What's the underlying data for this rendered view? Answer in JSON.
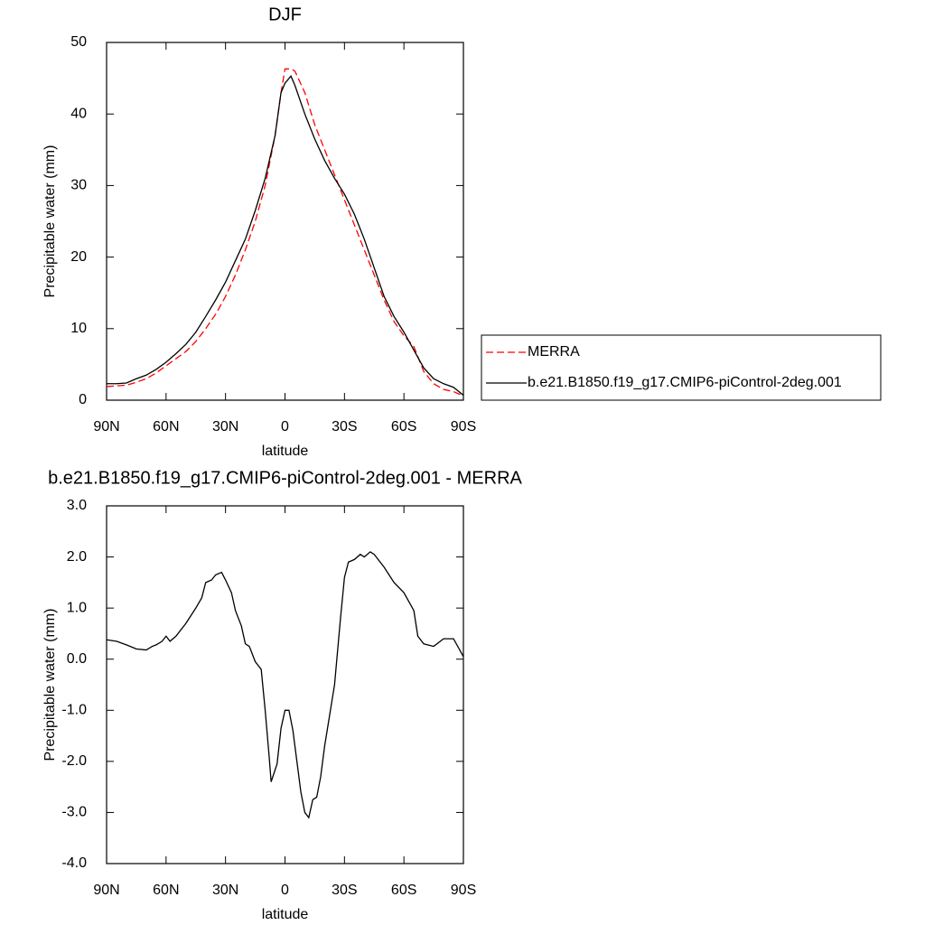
{
  "chart_data": [
    {
      "type": "line",
      "title": "DJF",
      "x_label": "latitude",
      "y_label": "Precipitable water (mm)",
      "x": [
        90,
        85,
        80,
        75,
        70,
        65,
        60,
        55,
        50,
        45,
        40,
        35,
        30,
        25,
        20,
        15,
        10,
        5,
        2,
        0,
        -3,
        -5,
        -10,
        -15,
        -20,
        -25,
        -30,
        -35,
        -40,
        -45,
        -50,
        -55,
        -60,
        -65,
        -70,
        -75,
        -80,
        -85,
        -90
      ],
      "series": [
        {
          "name": "MERRA",
          "color": "#ff0000",
          "dashed": true,
          "values": [
            1.9,
            2.0,
            2.1,
            2.5,
            3.0,
            3.8,
            4.8,
            5.8,
            6.8,
            8.2,
            10.0,
            12.0,
            14.5,
            17.5,
            21.0,
            25.0,
            30.0,
            37.0,
            43.0,
            46.3,
            46.3,
            46.0,
            43.0,
            38.5,
            35.0,
            31.5,
            28.0,
            24.5,
            21.0,
            17.5,
            14.0,
            11.0,
            9.0,
            7.5,
            4.0,
            2.3,
            1.5,
            1.2,
            0.6
          ]
        },
        {
          "name": "b.e21.B1850.f19_g17.CMIP6-piControl-2deg.001",
          "color": "#000000",
          "dashed": false,
          "values": [
            2.3,
            2.3,
            2.4,
            3.0,
            3.5,
            4.3,
            5.3,
            6.5,
            7.8,
            9.5,
            11.7,
            14.0,
            16.5,
            19.5,
            22.5,
            26.5,
            31.0,
            37.0,
            43.0,
            44.3,
            45.3,
            44.0,
            40.0,
            36.5,
            33.5,
            31.0,
            28.8,
            26.0,
            22.5,
            18.5,
            14.5,
            11.7,
            9.5,
            7.0,
            4.5,
            3.0,
            2.3,
            1.8,
            0.7
          ]
        }
      ],
      "xlim": [
        90,
        -90
      ],
      "xticks": [
        {
          "value": 90,
          "label": "90N"
        },
        {
          "value": 60,
          "label": "60N"
        },
        {
          "value": 30,
          "label": "30N"
        },
        0,
        {
          "value": -30,
          "label": "30S"
        },
        {
          "value": -60,
          "label": "60S"
        },
        {
          "value": -90,
          "label": "90S"
        }
      ],
      "ylim": [
        0,
        50
      ],
      "yticks": [
        0,
        10,
        20,
        30,
        40,
        50
      ],
      "legend": "right"
    },
    {
      "type": "line",
      "title": "b.e21.B1850.f19_g17.CMIP6-piControl-2deg.001 - MERRA",
      "x_label": "latitude",
      "y_label": "Precipitable water (mm)",
      "x": [
        90,
        85,
        80,
        75,
        70,
        67,
        65,
        62,
        60,
        58,
        55,
        50,
        45,
        42,
        40,
        37,
        35,
        32,
        30,
        27,
        25,
        22,
        20,
        18,
        15,
        12,
        10,
        8,
        7,
        4,
        2,
        0,
        -2,
        -4,
        -6,
        -8,
        -10,
        -12,
        -14,
        -16,
        -18,
        -20,
        -25,
        -28,
        -30,
        -32,
        -35,
        -38,
        -40,
        -43,
        -45,
        -50,
        -55,
        -60,
        -65,
        -67,
        -70,
        -75,
        -80,
        -85,
        -90
      ],
      "values": [
        0.38,
        0.35,
        0.28,
        0.2,
        0.18,
        0.25,
        0.28,
        0.35,
        0.45,
        0.35,
        0.45,
        0.7,
        1.0,
        1.2,
        1.5,
        1.55,
        1.65,
        1.7,
        1.55,
        1.3,
        0.95,
        0.65,
        0.3,
        0.25,
        -0.05,
        -0.2,
        -1.0,
        -1.9,
        -2.4,
        -2.05,
        -1.35,
        -1.0,
        -1.0,
        -1.4,
        -2.0,
        -2.6,
        -3.0,
        -3.1,
        -2.75,
        -2.7,
        -2.3,
        -1.7,
        -0.5,
        0.8,
        1.6,
        1.9,
        1.95,
        2.05,
        2.0,
        2.1,
        2.05,
        1.8,
        1.5,
        1.3,
        0.95,
        0.45,
        0.3,
        0.25,
        0.4,
        0.4,
        0.05
      ],
      "color": "#000000",
      "xlim": [
        90,
        -90
      ],
      "xticks": [
        {
          "value": 90,
          "label": "90N"
        },
        {
          "value": 60,
          "label": "60N"
        },
        {
          "value": 30,
          "label": "30N"
        },
        0,
        {
          "value": -30,
          "label": "30S"
        },
        {
          "value": -60,
          "label": "60S"
        },
        {
          "value": -90,
          "label": "90S"
        }
      ],
      "ylim": [
        -4,
        3
      ],
      "yticks": [
        {
          "value": -4,
          "label": "-4.0"
        },
        {
          "value": -3,
          "label": "-3.0"
        },
        {
          "value": -2,
          "label": "-2.0"
        },
        {
          "value": -1,
          "label": "-1.0"
        },
        {
          "value": 0,
          "label": "0.0"
        },
        {
          "value": 1,
          "label": "1.0"
        },
        {
          "value": 2,
          "label": "2.0"
        },
        {
          "value": 3,
          "label": "3.0"
        }
      ]
    }
  ]
}
